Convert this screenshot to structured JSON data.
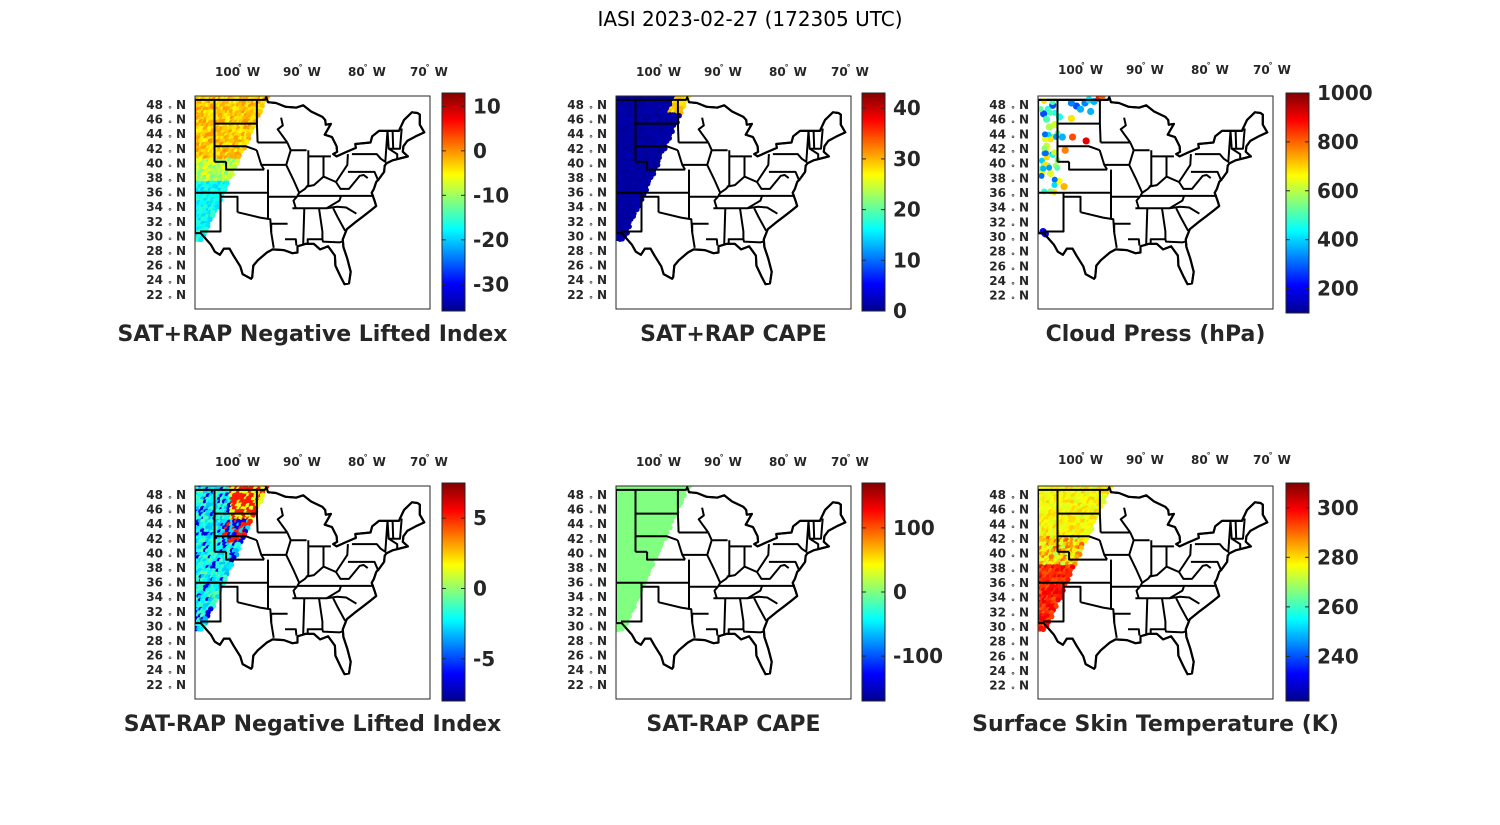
{
  "title": "IASI 2023-02-27 (172305 UTC)",
  "lat_labels": [
    "48",
    "46",
    "44",
    "42",
    "40",
    "38",
    "36",
    "34",
    "32",
    "30",
    "28",
    "26",
    "24",
    "22"
  ],
  "lat_suffix": "N",
  "lon_labels": [
    "100",
    "90",
    "80",
    "70"
  ],
  "lon_suffix": "W",
  "colormap": "jet",
  "panels": [
    {
      "title": "SAT+RAP Negative Lifted Index",
      "range": [
        -36,
        13
      ],
      "ticks": [
        {
          "v": 10,
          "label": "10"
        },
        {
          "v": 0,
          "label": "0"
        },
        {
          "v": -10,
          "label": "-10"
        },
        {
          "v": -20,
          "label": "-20"
        },
        {
          "v": -30,
          "label": "-30"
        }
      ],
      "swath": "full"
    },
    {
      "title": "SAT+RAP CAPE",
      "range": [
        0,
        43
      ],
      "ticks": [
        {
          "v": 40,
          "label": "40"
        },
        {
          "v": 30,
          "label": "30"
        },
        {
          "v": 20,
          "label": "20"
        },
        {
          "v": 10,
          "label": "10"
        },
        {
          "v": 0,
          "label": "0"
        }
      ],
      "swath": "full"
    },
    {
      "title": "Cloud Press (hPa)",
      "range": [
        100,
        1000
      ],
      "ticks": [
        {
          "v": 1000,
          "label": "1000"
        },
        {
          "v": 800,
          "label": "800"
        },
        {
          "v": 600,
          "label": "600"
        },
        {
          "v": 400,
          "label": "400"
        },
        {
          "v": 200,
          "label": "200"
        }
      ],
      "swath": "sparse"
    },
    {
      "title": "SAT-RAP Negative Lifted Index",
      "range": [
        -8,
        7.5
      ],
      "ticks": [
        {
          "v": 5,
          "label": "5"
        },
        {
          "v": 0,
          "label": "0"
        },
        {
          "v": -5,
          "label": "-5"
        }
      ],
      "swath": "full"
    },
    {
      "title": "SAT-RAP CAPE",
      "range": [
        -170,
        170
      ],
      "ticks": [
        {
          "v": 100,
          "label": "100"
        },
        {
          "v": 0,
          "label": "0"
        },
        {
          "v": -100,
          "label": "-100"
        }
      ],
      "swath": "full"
    },
    {
      "title": "Surface Skin Temperature (K)",
      "range": [
        222,
        310
      ],
      "ticks": [
        {
          "v": 300,
          "label": "300"
        },
        {
          "v": 280,
          "label": "280"
        },
        {
          "v": 260,
          "label": "260"
        },
        {
          "v": 240,
          "label": "240"
        }
      ],
      "swath": "full"
    }
  ]
}
